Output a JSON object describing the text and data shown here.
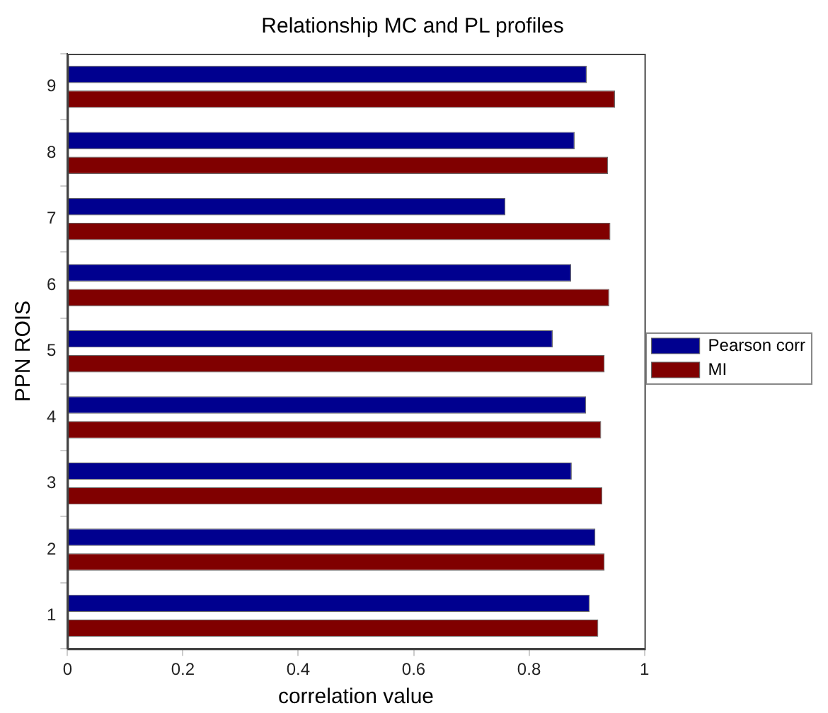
{
  "chart_data": {
    "type": "bar",
    "orientation": "horizontal",
    "title": "Relationship MC and PL profiles",
    "xlabel": "correlation value",
    "ylabel": "PPN ROIS",
    "categories": [
      "9",
      "8",
      "7",
      "6",
      "5",
      "4",
      "3",
      "2",
      "1"
    ],
    "series": [
      {
        "name": "Pearson corr",
        "color": "#00008f",
        "values": [
          0.9,
          0.879,
          0.759,
          0.873,
          0.841,
          0.899,
          0.874,
          0.915,
          0.905
        ]
      },
      {
        "name": "MI",
        "color": "#800000",
        "values": [
          0.949,
          0.937,
          0.941,
          0.939,
          0.931,
          0.925,
          0.927,
          0.931,
          0.92
        ]
      }
    ],
    "xlim": [
      0,
      1
    ],
    "xticks": [
      0,
      0.2,
      0.4,
      0.6,
      0.8,
      1
    ],
    "grid": false,
    "legend": "right"
  }
}
